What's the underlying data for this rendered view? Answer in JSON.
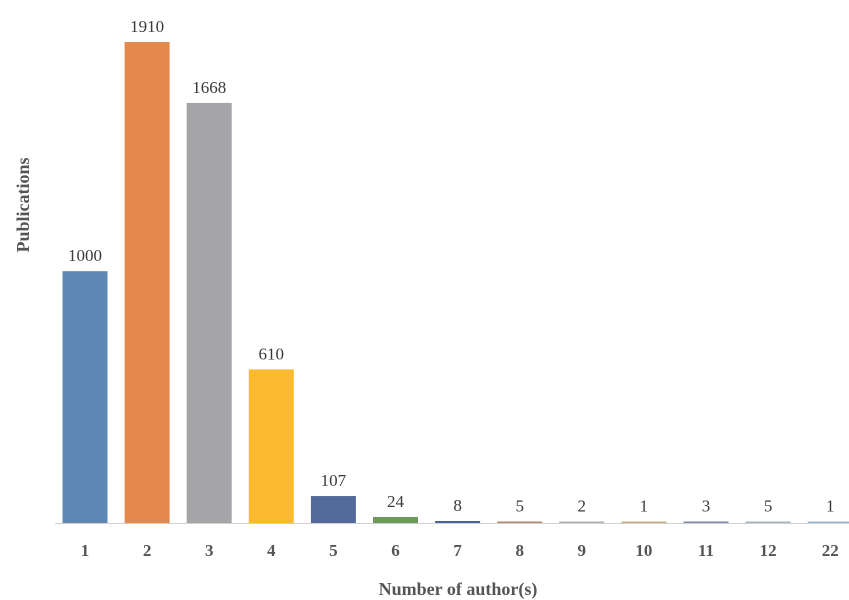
{
  "chart_data": {
    "type": "bar",
    "title": "",
    "xlabel": "Number of author(s)",
    "ylabel": "Publications",
    "categories": [
      "1",
      "2",
      "3",
      "4",
      "5",
      "6",
      "7",
      "8",
      "9",
      "10",
      "11",
      "12",
      "22"
    ],
    "values": [
      1000,
      1910,
      1668,
      610,
      107,
      24,
      8,
      5,
      2,
      1,
      3,
      5,
      1
    ],
    "data_labels": [
      "1000",
      "1910",
      "1668",
      "610",
      "107",
      "24",
      "8",
      "5",
      "2",
      "1",
      "3",
      "5",
      "1"
    ],
    "colors": [
      "#5f87b3",
      "#e3894b",
      "#a5a5a7",
      "#fbb92d",
      "#546a9b",
      "#6e9a59",
      "#4a6592",
      "#b78a6e",
      "#b2b2b2",
      "#c4b081",
      "#7d8aaa",
      "#a6b4c8",
      "#9ab6d4"
    ],
    "ylim": [
      0,
      1910
    ],
    "grid": false,
    "legend": "none"
  }
}
